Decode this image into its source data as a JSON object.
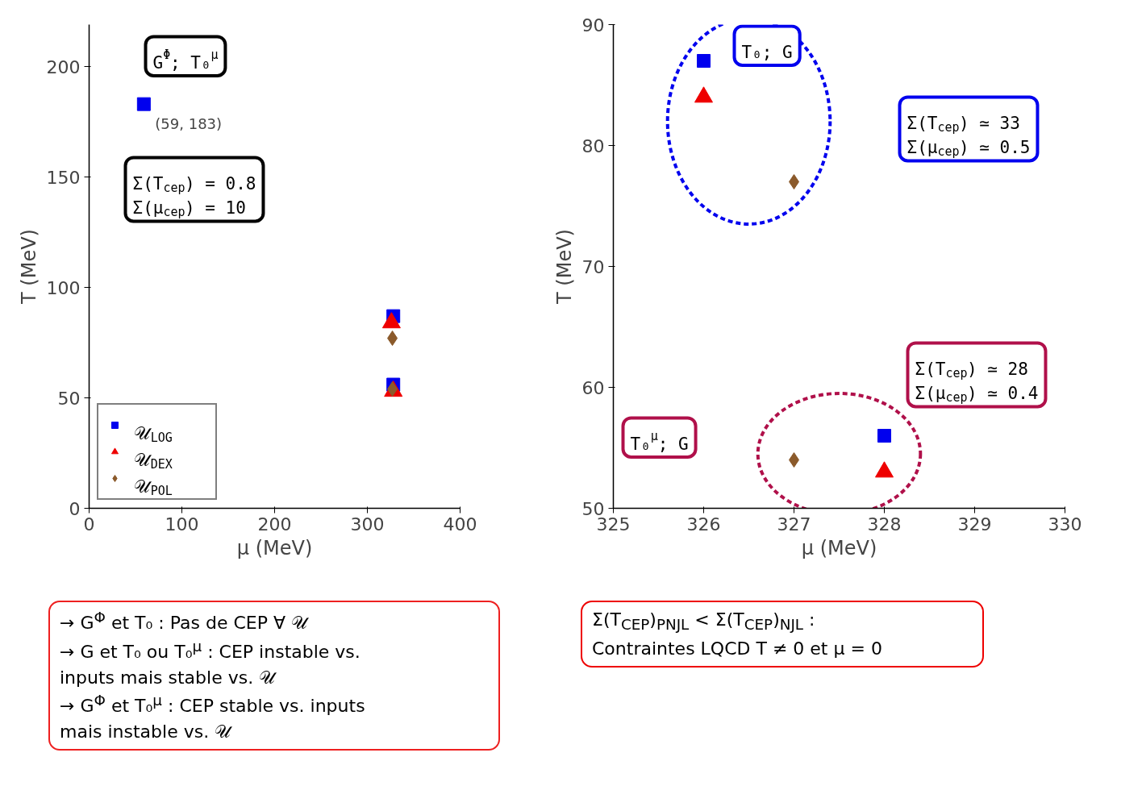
{
  "chart_data": [
    {
      "type": "scatter",
      "xlabel": "μ (MeV)",
      "ylabel": "T (MeV)",
      "xlim": [
        0,
        400
      ],
      "ylim": [
        0,
        219
      ],
      "xticks": [
        0,
        100,
        200,
        300,
        400
      ],
      "yticks": [
        0,
        50,
        100,
        150,
        200
      ],
      "grid": false,
      "legend": "bottom left",
      "series": [
        {
          "name": "𝒰$_{LOG}$",
          "color": "#0000ee",
          "marker": "square",
          "x": [
            59,
            328,
            328
          ],
          "values": [
            183,
            87,
            56
          ]
        },
        {
          "name": "𝒰$_{DEX}$",
          "color": "#ee0000",
          "marker": "triangle",
          "x": [
            326,
            328
          ],
          "values": [
            84,
            53
          ]
        },
        {
          "name": "𝒰$_{POL}$",
          "color": "#8b5a2b",
          "marker": "diamond",
          "x": [
            327,
            327
          ],
          "values": [
            77,
            54
          ]
        }
      ],
      "annotations": [
        "G$^{Φ}$; T₀$^{μ}$",
        {
          "text": "(59, 183)",
          "x": 59,
          "y": 183
        },
        "Σ(T$_{cep}$) = 0.8\nΣ(μ$_{cep}$) = 10",
        "→ G$^{Φ}$ et T₀ : Pas de CEP ∀ 𝒰\n→ G et T₀ ou T₀$^{μ}$ : CEP instable vs.\ninputs mais stable vs. 𝒰\n→ G$^{Φ}$ et T₀$^{μ}$ : CEP stable vs. inputs\nmais instable vs. 𝒰"
      ]
    },
    {
      "type": "scatter",
      "xlabel": "μ (MeV)",
      "ylabel": "T (MeV)",
      "xlim": [
        325,
        330
      ],
      "ylim": [
        50,
        90
      ],
      "xticks": [
        325,
        326,
        327,
        328,
        329,
        330
      ],
      "yticks": [
        50,
        60,
        70,
        80,
        90
      ],
      "grid": false,
      "series": [
        {
          "color": "#0000ee",
          "marker": "square",
          "x": [
            326,
            328
          ],
          "values": [
            87,
            56
          ]
        },
        {
          "color": "#ee0000",
          "marker": "triangle",
          "x": [
            326,
            328
          ],
          "values": [
            84,
            53
          ]
        },
        {
          "color": "#8b5a2b",
          "marker": "diamond",
          "x": [
            327,
            327
          ],
          "values": [
            77,
            54
          ]
        }
      ],
      "annotations": [
        "T₀; G",
        "Σ(T$_{cep}$) ≃ 33\nΣ(μ$_{cep}$) ≃ 0.5",
        "T₀$^{μ}$; G",
        "Σ(T$_{cep}$) ≃ 28\nΣ(μ$_{cep}$) ≃ 0.4",
        "Σ(T$_{CEP}$)$_{PNJL}$  <  Σ(T$_{CEP}$)$_{NJL}$ :\nContraintes LQCD T ≠ 0 et μ = 0"
      ]
    }
  ]
}
